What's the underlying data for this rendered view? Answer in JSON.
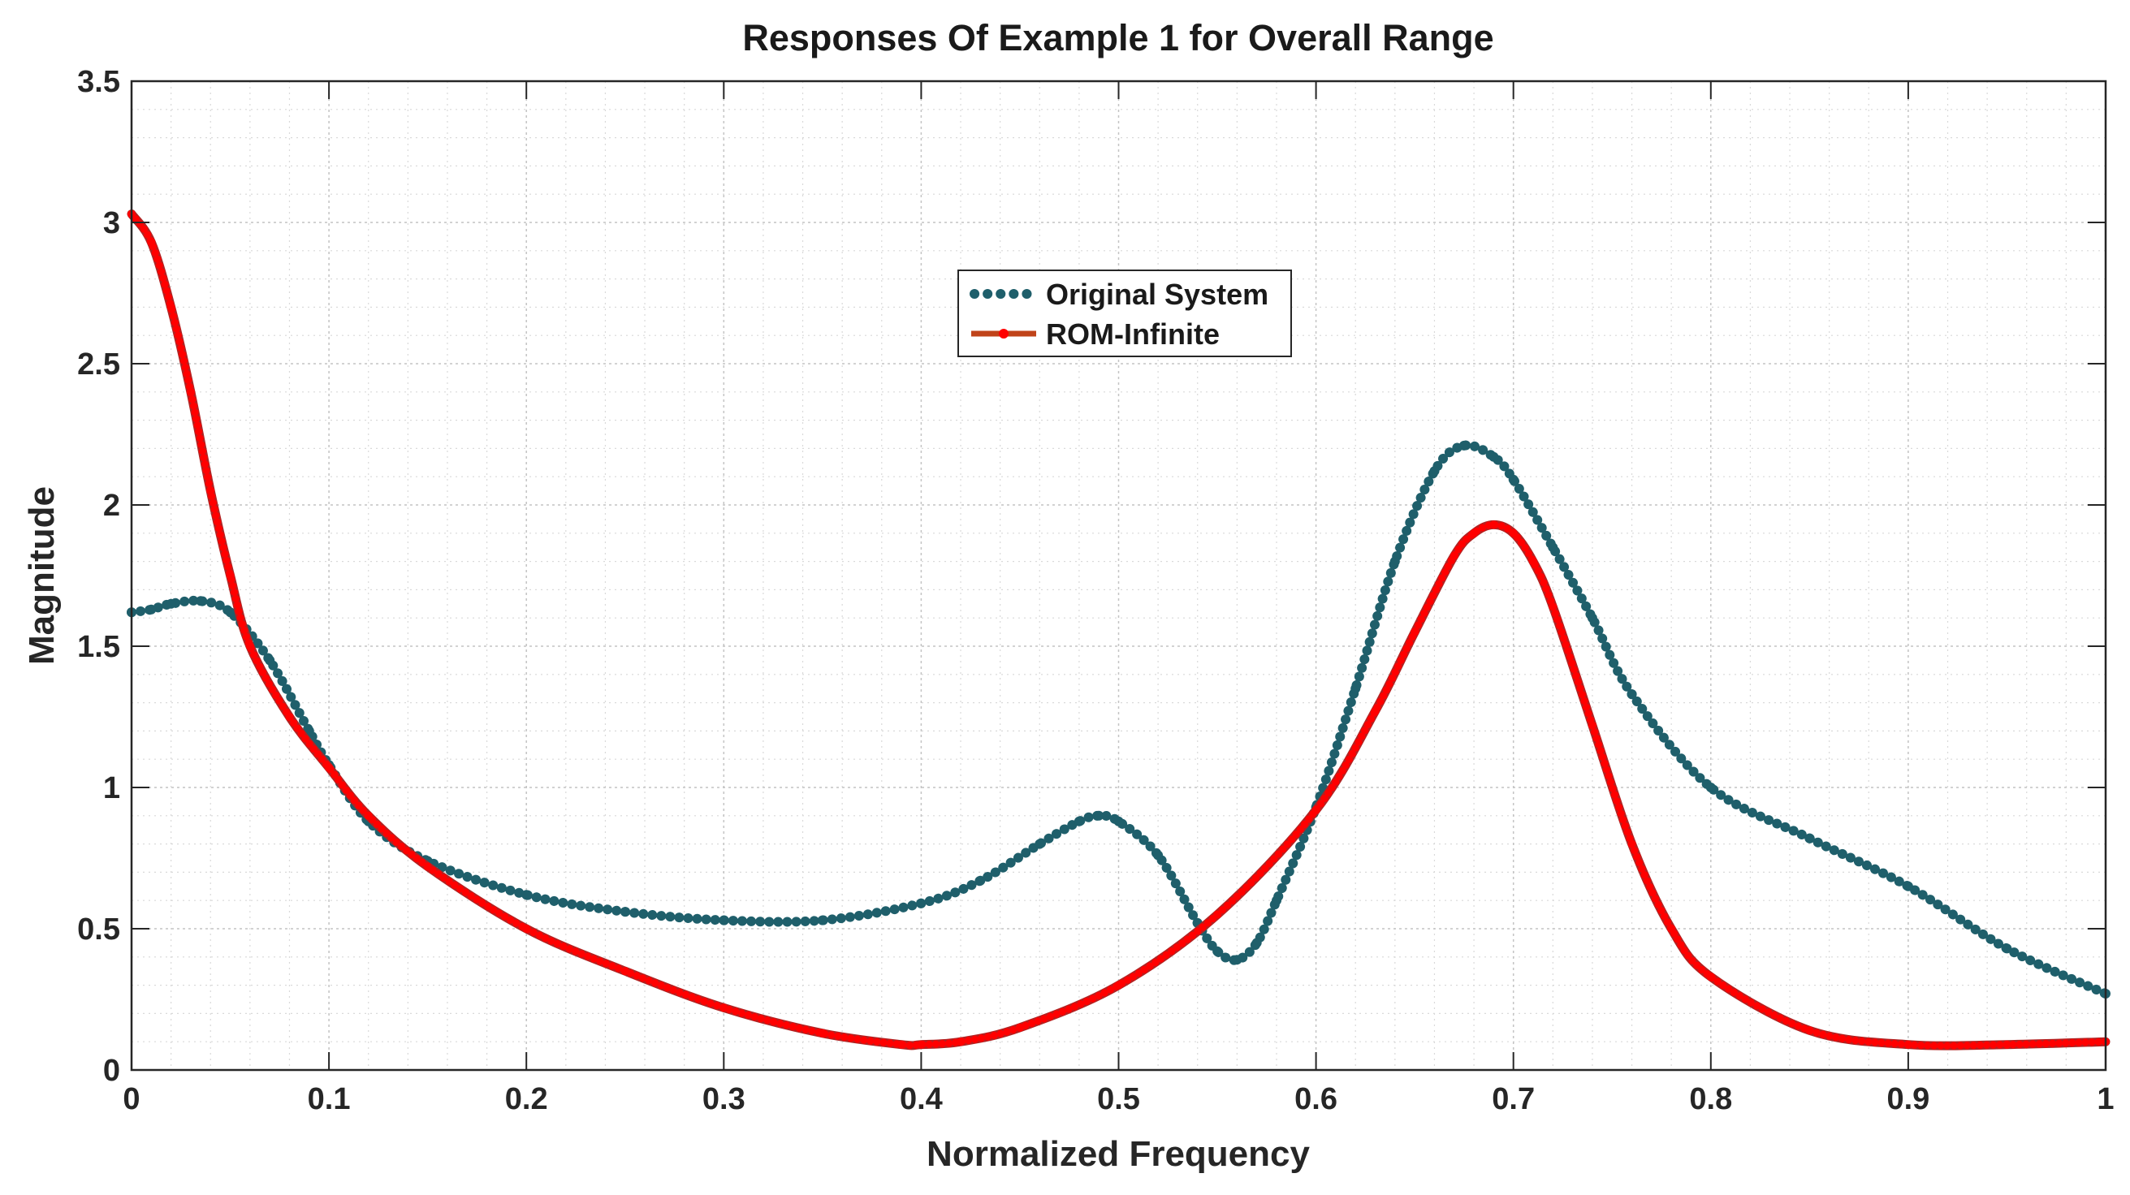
{
  "chart_data": {
    "type": "line",
    "title": "Responses Of Example 1 for Overall Range",
    "xlabel": "Normalized Frequency",
    "ylabel": "Magnitude",
    "xlim": [
      0,
      1
    ],
    "ylim": [
      0,
      3.5
    ],
    "xticks": [
      "0",
      "0.1",
      "0.2",
      "0.3",
      "0.4",
      "0.5",
      "0.6",
      "0.7",
      "0.8",
      "0.9",
      "1"
    ],
    "yticks": [
      "0",
      "0.5",
      "1",
      "1.5",
      "2",
      "2.5",
      "3",
      "3.5"
    ],
    "grid": true,
    "minor_grid": true,
    "legend_position": "upper-center",
    "series": [
      {
        "name": "Original System",
        "color": "#1f5f6b",
        "style": "dotted",
        "x": [
          0,
          0.01,
          0.02,
          0.035,
          0.05,
          0.07,
          0.09,
          0.1,
          0.12,
          0.15,
          0.2,
          0.25,
          0.3,
          0.35,
          0.4,
          0.43,
          0.46,
          0.48,
          0.49,
          0.5,
          0.52,
          0.54,
          0.55,
          0.56,
          0.57,
          0.58,
          0.6,
          0.62,
          0.64,
          0.66,
          0.675,
          0.69,
          0.7,
          0.72,
          0.74,
          0.76,
          0.8,
          0.85,
          0.9,
          0.95,
          1.0
        ],
        "y": [
          1.62,
          1.63,
          1.65,
          1.66,
          1.62,
          1.45,
          1.2,
          1.08,
          0.88,
          0.74,
          0.62,
          0.56,
          0.53,
          0.53,
          0.59,
          0.67,
          0.8,
          0.88,
          0.9,
          0.88,
          0.76,
          0.52,
          0.42,
          0.39,
          0.45,
          0.6,
          0.93,
          1.35,
          1.8,
          2.12,
          2.21,
          2.17,
          2.09,
          1.85,
          1.6,
          1.33,
          1.0,
          0.82,
          0.65,
          0.43,
          0.27
        ]
      },
      {
        "name": "ROM-Infinite",
        "color": "#ff0000",
        "style": "solid-marker",
        "x": [
          0,
          0.01,
          0.02,
          0.03,
          0.04,
          0.05,
          0.06,
          0.08,
          0.1,
          0.12,
          0.15,
          0.2,
          0.25,
          0.3,
          0.35,
          0.39,
          0.4,
          0.42,
          0.45,
          0.5,
          0.55,
          0.6,
          0.63,
          0.65,
          0.67,
          0.68,
          0.69,
          0.7,
          0.71,
          0.72,
          0.74,
          0.76,
          0.78,
          0.8,
          0.85,
          0.9,
          0.95,
          1.0
        ],
        "y": [
          3.03,
          2.93,
          2.7,
          2.4,
          2.05,
          1.75,
          1.5,
          1.25,
          1.07,
          0.9,
          0.72,
          0.5,
          0.35,
          0.22,
          0.13,
          0.09,
          0.09,
          0.1,
          0.15,
          0.3,
          0.55,
          0.92,
          1.27,
          1.55,
          1.82,
          1.9,
          1.93,
          1.9,
          1.8,
          1.64,
          1.22,
          0.8,
          0.5,
          0.33,
          0.14,
          0.09,
          0.09,
          0.1
        ]
      }
    ]
  }
}
